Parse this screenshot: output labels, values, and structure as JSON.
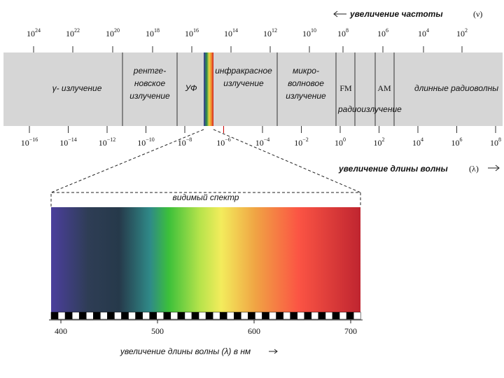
{
  "header": {
    "frequency_label": "увеличение частоты",
    "frequency_symbol": "(ν)"
  },
  "frequency_ticks": [
    {
      "base": "10",
      "exp": "24"
    },
    {
      "base": "10",
      "exp": "22"
    },
    {
      "base": "10",
      "exp": "20"
    },
    {
      "base": "10",
      "exp": "18"
    },
    {
      "base": "10",
      "exp": "16"
    },
    {
      "base": "10",
      "exp": "14"
    },
    {
      "base": "10",
      "exp": "12"
    },
    {
      "base": "10",
      "exp": "10"
    },
    {
      "base": "10",
      "exp": "8"
    },
    {
      "base": "10",
      "exp": "6"
    },
    {
      "base": "10",
      "exp": "4"
    },
    {
      "base": "10",
      "exp": "2"
    }
  ],
  "bands": [
    {
      "lines": [
        "γ- излучение"
      ]
    },
    {
      "lines": [
        "рентге-",
        "новское",
        "излучение"
      ]
    },
    {
      "lines": [
        "УФ"
      ]
    },
    {
      "lines": [
        "инфракрасное",
        "излучение"
      ]
    },
    {
      "lines": [
        "микро-",
        "волновое",
        "излучение"
      ]
    },
    {
      "lines": [
        "FM"
      ]
    },
    {
      "lines": [
        "AM"
      ]
    },
    {
      "lines": [
        "длинные радиоволны"
      ]
    }
  ],
  "radio_label": "радиоизлучение",
  "wavelength_ticks": [
    {
      "base": "10",
      "exp": "−16"
    },
    {
      "base": "10",
      "exp": "−14"
    },
    {
      "base": "10",
      "exp": "−12"
    },
    {
      "base": "10",
      "exp": "−10"
    },
    {
      "base": "10",
      "exp": "−8"
    },
    {
      "base": "10",
      "exp": "−6"
    },
    {
      "base": "10",
      "exp": "−4"
    },
    {
      "base": "10",
      "exp": "−2"
    },
    {
      "base": "10",
      "exp": "0"
    },
    {
      "base": "10",
      "exp": "2"
    },
    {
      "base": "10",
      "exp": "4"
    },
    {
      "base": "10",
      "exp": "6"
    },
    {
      "base": "10",
      "exp": "8"
    }
  ],
  "wavelength_label": "увеличение длины волны",
  "wavelength_symbol": "(λ)",
  "visible": {
    "title": "видимый спектр",
    "ticks": [
      "400",
      "500",
      "600",
      "700"
    ],
    "axis_label": "увеличение длины волны (λ) в нм"
  }
}
